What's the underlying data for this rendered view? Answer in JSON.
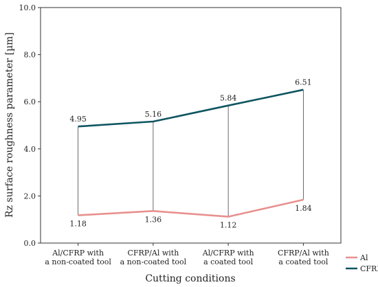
{
  "chart_data": {
    "type": "line",
    "title": "",
    "xlabel": "Cutting conditions",
    "ylabel": "Rz surface roughness parameter [µm]",
    "ylim": [
      0,
      10
    ],
    "yticks": [
      "0.0",
      "2.0",
      "4.0",
      "6.0",
      "8.0",
      "10.0"
    ],
    "categories": [
      [
        "Al/CFRP with",
        "a non-coated tool"
      ],
      [
        "CFRP/Al with",
        "a non-coated tool"
      ],
      [
        "Al/CFRP with",
        "a coated tool"
      ],
      [
        "CFRP/Al with",
        "a coated tool"
      ]
    ],
    "series": [
      {
        "name": "Al",
        "color": "#e8908f",
        "values": [
          1.18,
          1.36,
          1.12,
          1.84
        ],
        "labels": [
          "1.18",
          "1.36",
          "1.12",
          "1.84"
        ]
      },
      {
        "name": "CFRP",
        "color": "#0e5560",
        "values": [
          4.95,
          5.16,
          5.84,
          6.51
        ],
        "labels": [
          "4.95",
          "5.16",
          "5.84",
          "6.51"
        ]
      }
    ],
    "grid": false,
    "legend_position": "bottom-right"
  }
}
